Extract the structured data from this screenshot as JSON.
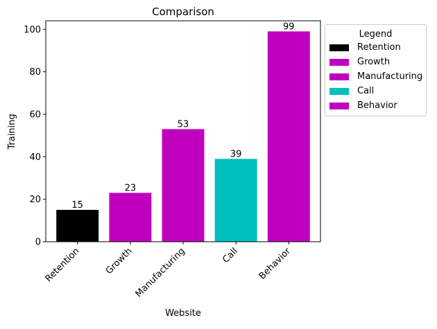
{
  "chart_data": {
    "type": "bar",
    "title": "Comparison",
    "xlabel": "Website",
    "ylabel": "Training",
    "categories": [
      "Retention",
      "Growth",
      "Manufacturing",
      "Call",
      "Behavior"
    ],
    "values": [
      15,
      23,
      53,
      39,
      99
    ],
    "colors": [
      "#000000",
      "#bf00bf",
      "#bf00bf",
      "#00bfbf",
      "#bf00bf"
    ],
    "ylim": [
      0,
      104
    ],
    "yticks": [
      0,
      20,
      40,
      60,
      80,
      100
    ],
    "legend": {
      "title": "Legend",
      "placement": "outside-top-right",
      "entries": [
        "Retention",
        "Growth",
        "Manufacturing",
        "Call",
        "Behavior"
      ]
    },
    "grid": false
  }
}
